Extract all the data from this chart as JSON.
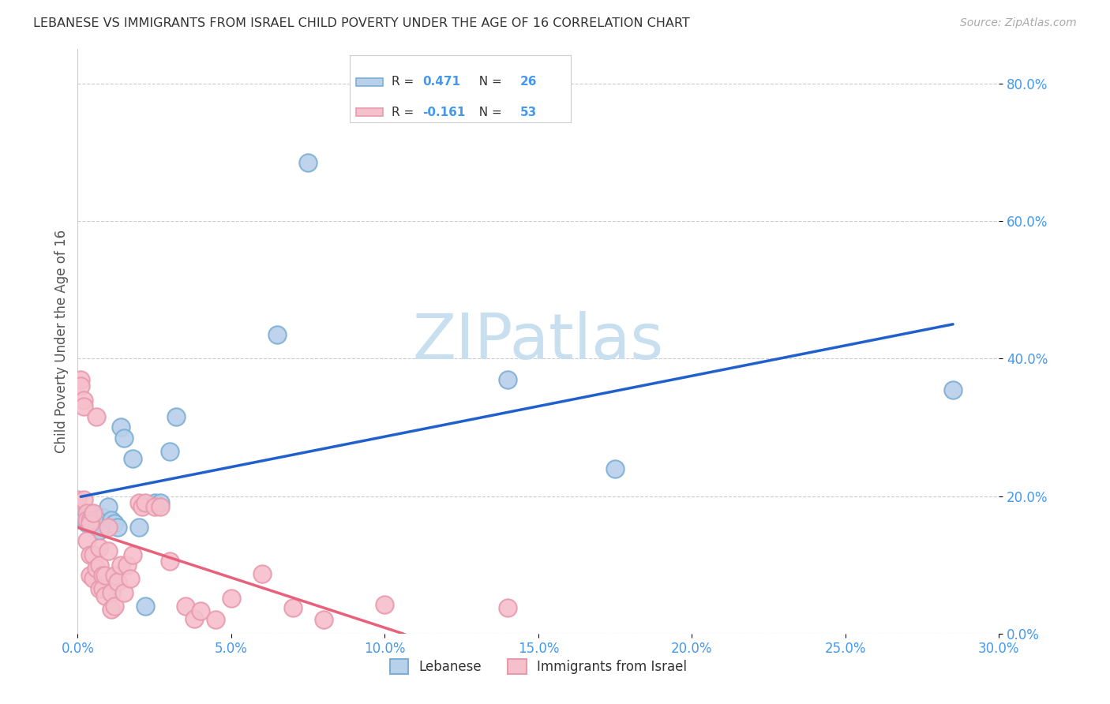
{
  "title": "LEBANESE VS IMMIGRANTS FROM ISRAEL CHILD POVERTY UNDER THE AGE OF 16 CORRELATION CHART",
  "source": "Source: ZipAtlas.com",
  "ylabel": "Child Poverty Under the Age of 16",
  "xlim": [
    0.0,
    0.3
  ],
  "ylim": [
    0.0,
    0.85
  ],
  "xtick_vals": [
    0.0,
    0.05,
    0.1,
    0.15,
    0.2,
    0.25,
    0.3
  ],
  "ytick_vals": [
    0.0,
    0.2,
    0.4,
    0.6,
    0.8
  ],
  "legend_labels": [
    "Lebanese",
    "Immigrants from Israel"
  ],
  "R_lebanese": 0.471,
  "N_lebanese": 26,
  "R_immigrants": -0.161,
  "N_immigrants": 53,
  "lebanese_fill": "#b8d0ea",
  "lebanese_edge": "#7bafd4",
  "immigrants_fill": "#f5bfcc",
  "immigrants_edge": "#e89aad",
  "line_leb_color": "#2060cc",
  "line_imm_color": "#e8607a",
  "tick_color": "#4499ee",
  "watermark_color": "#c8dff0",
  "lebanese_x": [
    0.001,
    0.002,
    0.003,
    0.004,
    0.005,
    0.006,
    0.007,
    0.008,
    0.01,
    0.011,
    0.012,
    0.013,
    0.014,
    0.015,
    0.018,
    0.02,
    0.022,
    0.025,
    0.027,
    0.03,
    0.032,
    0.065,
    0.075,
    0.14,
    0.175,
    0.285
  ],
  "lebanese_y": [
    0.175,
    0.165,
    0.16,
    0.175,
    0.165,
    0.155,
    0.15,
    0.17,
    0.185,
    0.165,
    0.16,
    0.155,
    0.3,
    0.285,
    0.255,
    0.155,
    0.04,
    0.19,
    0.19,
    0.265,
    0.315,
    0.435,
    0.685,
    0.37,
    0.24,
    0.355
  ],
  "immigrants_x": [
    0.0,
    0.001,
    0.001,
    0.002,
    0.002,
    0.002,
    0.003,
    0.003,
    0.003,
    0.004,
    0.004,
    0.004,
    0.004,
    0.005,
    0.005,
    0.005,
    0.006,
    0.006,
    0.007,
    0.007,
    0.007,
    0.008,
    0.008,
    0.009,
    0.009,
    0.01,
    0.01,
    0.011,
    0.011,
    0.012,
    0.012,
    0.013,
    0.014,
    0.015,
    0.016,
    0.017,
    0.018,
    0.02,
    0.021,
    0.022,
    0.025,
    0.027,
    0.03,
    0.035,
    0.038,
    0.04,
    0.045,
    0.05,
    0.06,
    0.07,
    0.08,
    0.1,
    0.14
  ],
  "immigrants_y": [
    0.195,
    0.37,
    0.36,
    0.34,
    0.33,
    0.195,
    0.175,
    0.165,
    0.135,
    0.165,
    0.16,
    0.115,
    0.085,
    0.175,
    0.115,
    0.08,
    0.315,
    0.095,
    0.125,
    0.1,
    0.065,
    0.085,
    0.065,
    0.085,
    0.055,
    0.155,
    0.12,
    0.06,
    0.035,
    0.085,
    0.04,
    0.075,
    0.1,
    0.06,
    0.1,
    0.08,
    0.115,
    0.19,
    0.185,
    0.19,
    0.185,
    0.185,
    0.105,
    0.04,
    0.022,
    0.033,
    0.02,
    0.052,
    0.087,
    0.038,
    0.02,
    0.042,
    0.038
  ]
}
